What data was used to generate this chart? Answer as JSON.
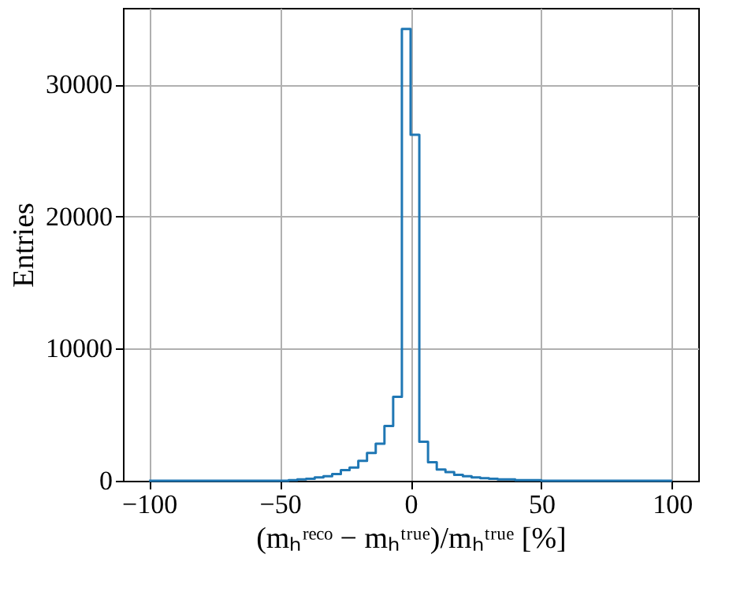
{
  "chart_data": {
    "type": "histogram",
    "xlabel": "(mₕʳᵉᶜᵒ − mₕᵗʳᵘᵉ)/mₕᵗʳᵘᵉ [%]",
    "ylabel": "Entries",
    "bins": [
      -100,
      -96.667,
      -93.333,
      -90,
      -86.667,
      -83.333,
      -80,
      -76.667,
      -73.333,
      -70,
      -66.667,
      -63.333,
      -60,
      -56.667,
      -53.333,
      -50,
      -46.667,
      -43.333,
      -40,
      -36.667,
      -33.333,
      -30,
      -26.667,
      -23.333,
      -20,
      -16.667,
      -13.333,
      -10,
      -6.667,
      -3.333,
      0,
      3.333,
      6.667,
      10,
      13.333,
      16.667,
      20,
      23.333,
      26.667,
      30,
      33.333,
      36.667,
      40,
      43.333,
      46.667,
      50,
      53.333,
      56.667,
      60,
      63.333,
      66.667,
      70,
      73.333,
      76.667,
      80,
      83.333,
      86.667,
      90,
      93.333,
      96.667,
      100
    ],
    "values": [
      0,
      0,
      0,
      0,
      0,
      0,
      0,
      0,
      0,
      0,
      0,
      0,
      0,
      0,
      0,
      0,
      50,
      100,
      150,
      250,
      350,
      500,
      800,
      1000,
      1500,
      2100,
      2800,
      4150,
      6350,
      34200,
      26200,
      2950,
      1400,
      850,
      650,
      450,
      350,
      250,
      200,
      150,
      100,
      100,
      50,
      50,
      50,
      0,
      0,
      0,
      0,
      0,
      0,
      0,
      0,
      0,
      0,
      0,
      0,
      0,
      0,
      0
    ],
    "color": "#1f77b4",
    "xlim": [
      -110,
      110
    ],
    "xticks": [
      -100,
      -50,
      0,
      50,
      100
    ],
    "ylim": [
      0,
      35800
    ],
    "yticks": [
      0,
      10000,
      20000,
      30000
    ],
    "grid": true
  }
}
